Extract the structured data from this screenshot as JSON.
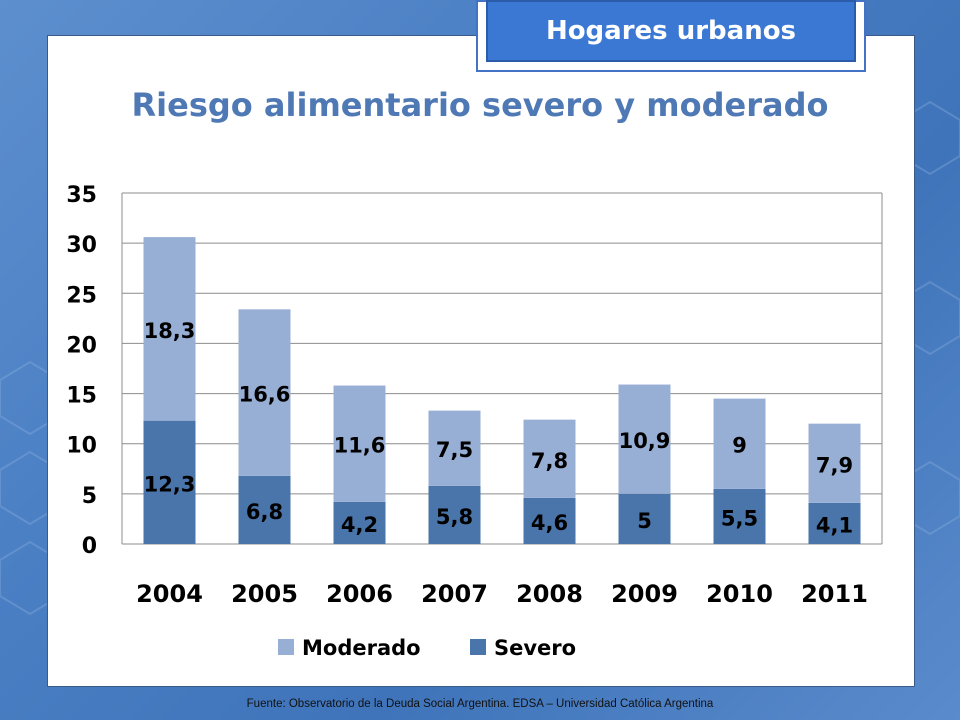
{
  "badge": "Hogares urbanos",
  "footer": "Fuente:   Observatorio de  la Deuda Social Argentina. EDSA  – Universidad Católica Argentina",
  "colors": {
    "severo": "#4a75aa",
    "moderado": "#98afd5",
    "title": "#4f79b5"
  },
  "chart_data": {
    "type": "bar",
    "stacked": true,
    "title": "Riesgo alimentario severo y moderado",
    "xlabel": "",
    "ylabel": "",
    "ylim": [
      0,
      35
    ],
    "yticks": [
      0,
      5,
      10,
      15,
      20,
      25,
      30,
      35
    ],
    "grid": true,
    "legend": "bottom",
    "categories": [
      "2004",
      "2005",
      "2006",
      "2007",
      "2008",
      "2009",
      "2010",
      "2011"
    ],
    "series": [
      {
        "name": "Severo",
        "values": [
          12.3,
          6.8,
          4.2,
          5.8,
          4.6,
          5,
          5.5,
          4.1
        ],
        "labels": [
          "12,3",
          "6,8",
          "4,2",
          "5,8",
          "4,6",
          "5",
          "5,5",
          "4,1"
        ]
      },
      {
        "name": "Moderado",
        "values": [
          18.3,
          16.6,
          11.6,
          7.5,
          7.8,
          10.9,
          9,
          7.9
        ],
        "labels": [
          "18,3",
          "16,6",
          "11,6",
          "7,5",
          "7,8",
          "10,9",
          "9",
          "7,9"
        ]
      }
    ],
    "legend_order": [
      "Moderado",
      "Severo"
    ]
  }
}
